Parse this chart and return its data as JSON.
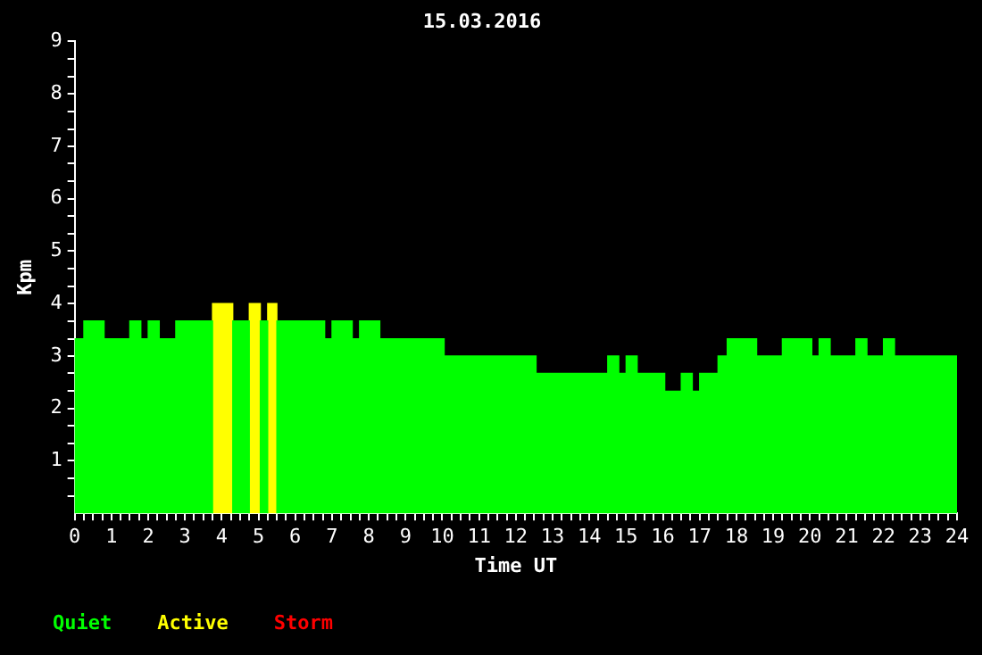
{
  "chart_data": {
    "type": "histogram",
    "title": "15.03.2016",
    "xlabel": "Time UT",
    "ylabel": "Kpm",
    "bins": [
      0,
      0.25,
      0.8,
      1.5,
      1.8,
      2.0,
      2.3,
      2.75,
      3.75,
      4.3,
      4.75,
      5.05,
      5.25,
      5.5,
      6.8,
      7.0,
      7.55,
      7.75,
      8.3,
      10.05,
      12.55,
      14.5,
      14.8,
      15.0,
      15.3,
      16.05,
      16.5,
      16.8,
      17.0,
      17.5,
      17.75,
      18.55,
      19.25,
      20.05,
      20.25,
      20.55,
      21.25,
      21.55,
      22.0,
      22.3,
      24
    ],
    "series": [
      {
        "name": "Quiet",
        "color": "#00ff00",
        "values": [
          3.33,
          3.67,
          3.33,
          3.67,
          3.33,
          3.67,
          3.33,
          3.67,
          null,
          3.67,
          null,
          3.67,
          null,
          3.67,
          3.33,
          3.67,
          3.33,
          3.67,
          3.33,
          3.0,
          2.67,
          3.0,
          2.67,
          3.0,
          2.67,
          2.33,
          2.67,
          2.33,
          2.67,
          3.0,
          3.33,
          3.0,
          3.33,
          3.0,
          3.33,
          3.0,
          3.33,
          3.0,
          3.33,
          3.0
        ]
      },
      {
        "name": "Active",
        "color": "#ffff00",
        "values": [
          null,
          null,
          null,
          null,
          null,
          null,
          null,
          null,
          4,
          null,
          4,
          null,
          4,
          null,
          null,
          null,
          null,
          null,
          null,
          null,
          null,
          null,
          null,
          null,
          null,
          null,
          null,
          null,
          null,
          null,
          null,
          null,
          null,
          null,
          null,
          null,
          null,
          null,
          null,
          null
        ]
      }
    ],
    "annotations": [
      "Storm"
    ],
    "xlim": [
      0,
      24
    ],
    "xticks": [
      0,
      {
        "value": 0.25,
        "label": null
      },
      {
        "value": 0.5,
        "label": null
      },
      {
        "value": 0.75,
        "label": null
      },
      1,
      {
        "value": 1.25,
        "label": null
      },
      {
        "value": 1.5,
        "label": null
      },
      {
        "value": 1.75,
        "label": null
      },
      2,
      {
        "value": 2.25,
        "label": null
      },
      {
        "value": 2.5,
        "label": null
      },
      {
        "value": 2.75,
        "label": null
      },
      3,
      {
        "value": 3.25,
        "label": null
      },
      {
        "value": 3.5,
        "label": null
      },
      {
        "value": 3.75,
        "label": null
      },
      4,
      {
        "value": 4.25,
        "label": null
      },
      {
        "value": 4.5,
        "label": null
      },
      {
        "value": 4.75,
        "label": null
      },
      5,
      {
        "value": 5.25,
        "label": null
      },
      {
        "value": 5.5,
        "label": null
      },
      {
        "value": 5.75,
        "label": null
      },
      6,
      {
        "value": 6.25,
        "label": null
      },
      {
        "value": 6.5,
        "label": null
      },
      {
        "value": 6.75,
        "label": null
      },
      7,
      {
        "value": 7.25,
        "label": null
      },
      {
        "value": 7.5,
        "label": null
      },
      {
        "value": 7.75,
        "label": null
      },
      8,
      {
        "value": 8.25,
        "label": null
      },
      {
        "value": 8.5,
        "label": null
      },
      {
        "value": 8.75,
        "label": null
      },
      9,
      {
        "value": 9.25,
        "label": null
      },
      {
        "value": 9.5,
        "label": null
      },
      {
        "value": 9.75,
        "label": null
      },
      10,
      {
        "value": 10.25,
        "label": null
      },
      {
        "value": 10.5,
        "label": null
      },
      {
        "value": 10.75,
        "label": null
      },
      11,
      {
        "value": 11.25,
        "label": null
      },
      {
        "value": 11.5,
        "label": null
      },
      {
        "value": 11.75,
        "label": null
      },
      12,
      {
        "value": 12.25,
        "label": null
      },
      {
        "value": 12.5,
        "label": null
      },
      {
        "value": 12.75,
        "label": null
      },
      13,
      {
        "value": 13.25,
        "label": null
      },
      {
        "value": 13.5,
        "label": null
      },
      {
        "value": 13.75,
        "label": null
      },
      14,
      {
        "value": 14.25,
        "label": null
      },
      {
        "value": 14.5,
        "label": null
      },
      {
        "value": 14.75,
        "label": null
      },
      15,
      {
        "value": 15.25,
        "label": null
      },
      {
        "value": 15.5,
        "label": null
      },
      {
        "value": 15.75,
        "label": null
      },
      16,
      {
        "value": 16.25,
        "label": null
      },
      {
        "value": 16.5,
        "label": null
      },
      {
        "value": 16.75,
        "label": null
      },
      17,
      {
        "value": 17.25,
        "label": null
      },
      {
        "value": 17.5,
        "label": null
      },
      {
        "value": 17.75,
        "label": null
      },
      18,
      {
        "value": 18.25,
        "label": null
      },
      {
        "value": 18.5,
        "label": null
      },
      {
        "value": 18.75,
        "label": null
      },
      19,
      {
        "value": 19.25,
        "label": null
      },
      {
        "value": 19.5,
        "label": null
      },
      {
        "value": 19.75,
        "label": null
      },
      20,
      {
        "value": 20.25,
        "label": null
      },
      {
        "value": 20.5,
        "label": null
      },
      {
        "value": 20.75,
        "label": null
      },
      21,
      {
        "value": 21.25,
        "label": null
      },
      {
        "value": 21.5,
        "label": null
      },
      {
        "value": 21.75,
        "label": null
      },
      22,
      {
        "value": 22.25,
        "label": null
      },
      {
        "value": 22.5,
        "label": null
      },
      {
        "value": 22.75,
        "label": null
      },
      23,
      {
        "value": 23.25,
        "label": null
      },
      {
        "value": 23.5,
        "label": null
      },
      {
        "value": 23.75,
        "label": null
      },
      24
    ],
    "ylim": [
      0,
      9
    ],
    "yticks": [
      {
        "value": 0.33,
        "label": null
      },
      {
        "value": 0.67,
        "label": null
      },
      1,
      {
        "value": 1.33,
        "label": null
      },
      {
        "value": 1.67,
        "label": null
      },
      2,
      {
        "value": 2.33,
        "label": null
      },
      {
        "value": 2.67,
        "label": null
      },
      3,
      {
        "value": 3.33,
        "label": null
      },
      {
        "value": 3.67,
        "label": null
      },
      4,
      {
        "value": 4.33,
        "label": null
      },
      {
        "value": 4.67,
        "label": null
      },
      5,
      {
        "value": 5.33,
        "label": null
      },
      {
        "value": 5.67,
        "label": null
      },
      6,
      {
        "value": 6.33,
        "label": null
      },
      {
        "value": 6.67,
        "label": null
      },
      7,
      {
        "value": 7.33,
        "label": null
      },
      {
        "value": 7.67,
        "label": null
      },
      8,
      {
        "value": 8.33,
        "label": null
      },
      {
        "value": 8.67,
        "label": null
      },
      9
    ],
    "grid": false,
    "legend": "bottom left"
  }
}
